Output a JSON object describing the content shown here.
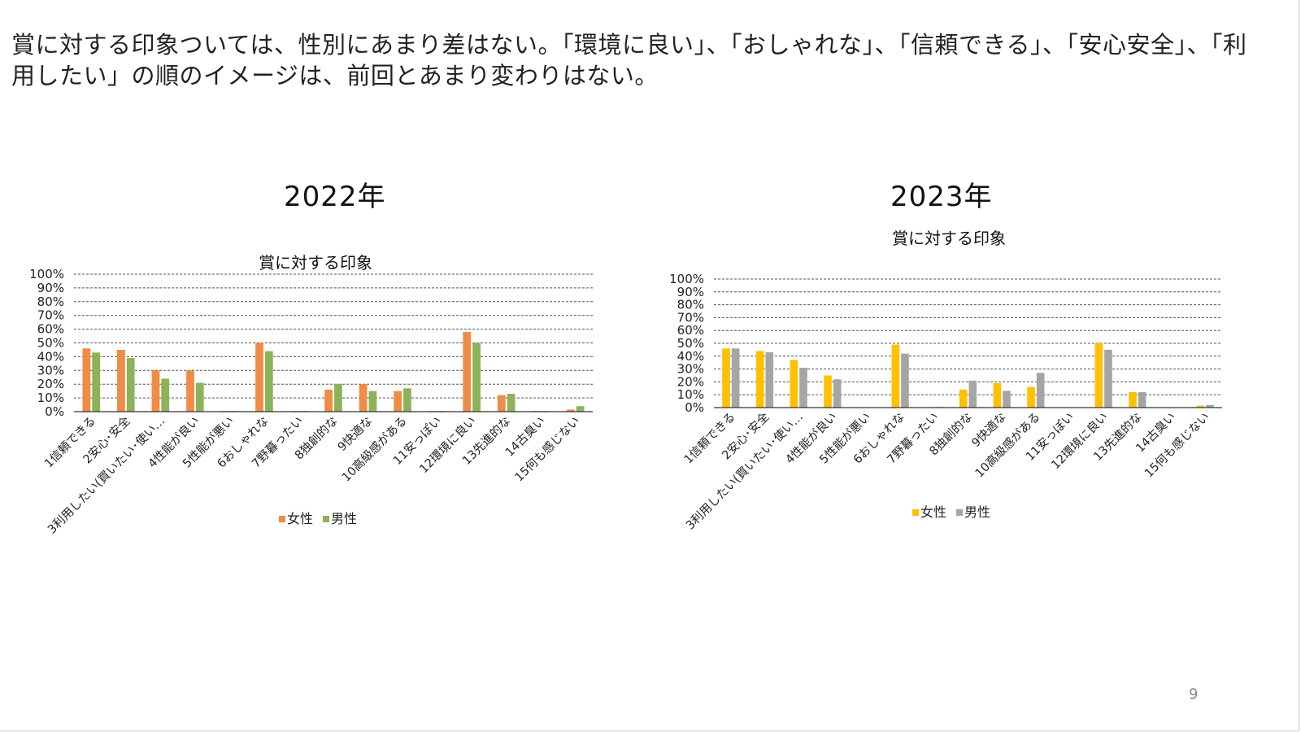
{
  "slide": {
    "headline": "賞に対する印象ついては、性別にあまり差はない。「環境に良い」、「おしゃれな」、「信頼できる」、「安心安全」、「利用したい」の順のイメージは、前回とあまり変わりはない。",
    "page_number": "9"
  },
  "panels": [
    {
      "year_title": "2022年"
    },
    {
      "year_title": "2023年"
    }
  ],
  "chart_data": [
    {
      "type": "bar",
      "title": "賞に対する印象",
      "categories": [
        "1信頼できる",
        "2安心･安全",
        "3利用したい(買いたい･使い…",
        "4性能が良い",
        "5性能が悪い",
        "6おしゃれな",
        "7野暮ったい",
        "8独創的な",
        "9快適な",
        "10高級感がある",
        "11安っぽい",
        "12環境に良い",
        "13先進的な",
        "14古臭い",
        "15何も感じない"
      ],
      "series": [
        {
          "name": "女性",
          "color": "#F08C45",
          "values": [
            46,
            45,
            30,
            30,
            0.5,
            50,
            0.5,
            16,
            20,
            15,
            0.5,
            58,
            12,
            0.5,
            1.5
          ]
        },
        {
          "name": "男性",
          "color": "#8DB35A",
          "values": [
            43,
            39,
            24,
            21,
            0.5,
            44,
            0.5,
            20,
            15,
            17,
            0.5,
            50,
            13,
            0.5,
            4
          ]
        }
      ],
      "y_ticks": [
        "0%",
        "10%",
        "20%",
        "30%",
        "40%",
        "50%",
        "60%",
        "70%",
        "80%",
        "90%",
        "100%"
      ],
      "ylim": [
        0,
        100
      ],
      "grid": true,
      "legend_position": "bottom"
    },
    {
      "type": "bar",
      "title": "賞に対する印象",
      "categories": [
        "1信頼できる",
        "2安心･安全",
        "3利用したい(買いたい･使い…",
        "4性能が良い",
        "5性能が悪い",
        "6おしゃれな",
        "7野暮ったい",
        "8独創的な",
        "9快適な",
        "10高級感がある",
        "11安っぽい",
        "12環境に良い",
        "13先進的な",
        "14古臭い",
        "15何も感じない"
      ],
      "series": [
        {
          "name": "女性",
          "color": "#FFC000",
          "values": [
            46,
            44,
            37,
            25,
            0,
            49,
            0,
            14,
            19,
            16,
            0,
            50,
            12,
            0,
            1.5
          ]
        },
        {
          "name": "男性",
          "color": "#A5A5A5",
          "values": [
            46,
            43,
            31,
            22,
            0,
            42,
            0.5,
            21,
            13,
            27,
            0,
            45,
            12,
            0,
            2
          ]
        }
      ],
      "y_ticks": [
        "0%",
        "10%",
        "20%",
        "30%",
        "40%",
        "50%",
        "60%",
        "70%",
        "80%",
        "90%",
        "100%"
      ],
      "ylim": [
        0,
        100
      ],
      "grid": true,
      "legend_position": "bottom"
    }
  ]
}
